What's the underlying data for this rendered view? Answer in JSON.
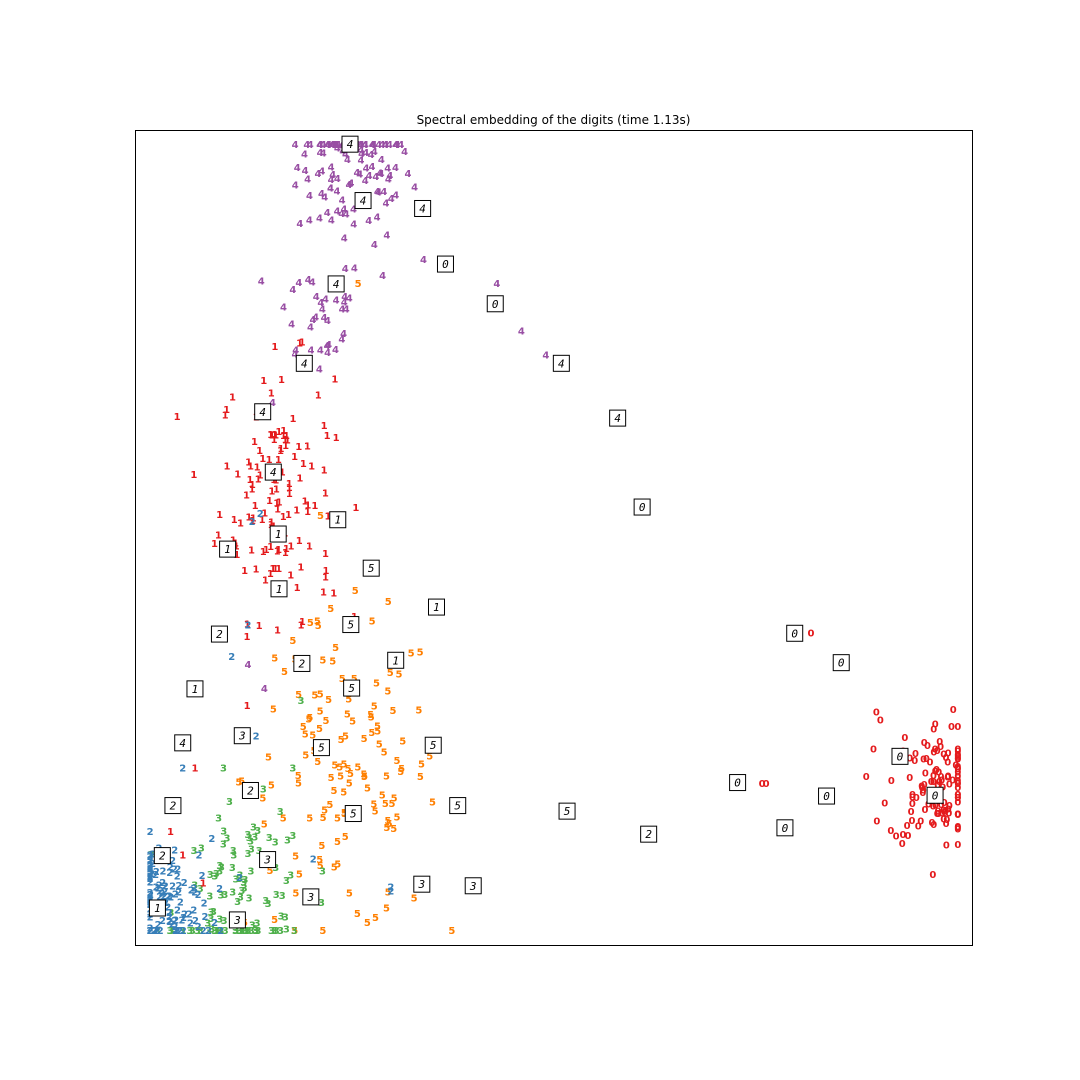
{
  "chart_data": {
    "type": "scatter",
    "title": "Spectral embedding of the digits (time 1.13s)",
    "xlabel": "",
    "ylabel": "",
    "xlim": [
      0,
      1
    ],
    "ylim": [
      0,
      1
    ],
    "grid": false,
    "axes_ticks": false,
    "colors": {
      "0": "#e41a1c",
      "1": "#e41a1c",
      "2": "#377eb8",
      "3": "#4daf4a",
      "4": "#984ea3",
      "5": "#ff7f00"
    },
    "clusters": [
      {
        "digit": "4",
        "center": [
          0.255,
          0.97
        ],
        "spread": [
          0.035,
          0.05
        ],
        "count": 120
      },
      {
        "digit": "4",
        "center": [
          0.21,
          0.78
        ],
        "spread": [
          0.03,
          0.04
        ],
        "count": 35
      },
      {
        "digit": "1",
        "center": [
          0.16,
          0.56
        ],
        "spread": [
          0.035,
          0.08
        ],
        "count": 130
      },
      {
        "digit": "5",
        "center": [
          0.24,
          0.2
        ],
        "spread": [
          0.06,
          0.1
        ],
        "count": 130
      },
      {
        "digit": "3",
        "center": [
          0.12,
          0.04
        ],
        "spread": [
          0.04,
          0.06
        ],
        "count": 110
      },
      {
        "digit": "2",
        "center": [
          0.02,
          0.04
        ],
        "spread": [
          0.03,
          0.04
        ],
        "count": 120
      },
      {
        "digit": "0",
        "center": [
          0.97,
          0.19
        ],
        "spread": [
          0.03,
          0.04
        ],
        "count": 120
      }
    ],
    "points": [
      {
        "d": "4",
        "x": 0.29,
        "y": 0.83
      },
      {
        "d": "4",
        "x": 0.34,
        "y": 0.85
      },
      {
        "d": "4",
        "x": 0.43,
        "y": 0.82
      },
      {
        "d": "4",
        "x": 0.46,
        "y": 0.76
      },
      {
        "d": "4",
        "x": 0.49,
        "y": 0.73
      },
      {
        "d": "4",
        "x": 0.155,
        "y": 0.67
      },
      {
        "d": "4",
        "x": 0.125,
        "y": 0.34
      },
      {
        "d": "4",
        "x": 0.145,
        "y": 0.31
      },
      {
        "d": "5",
        "x": 0.26,
        "y": 0.82
      },
      {
        "d": "5",
        "x": 0.21,
        "y": 0.395
      },
      {
        "d": "5",
        "x": 0.18,
        "y": 0.37
      },
      {
        "d": "1",
        "x": 0.22,
        "y": 0.48
      },
      {
        "d": "1",
        "x": 0.22,
        "y": 0.45
      },
      {
        "d": "1",
        "x": 0.23,
        "y": 0.43
      },
      {
        "d": "1",
        "x": 0.19,
        "y": 0.39
      },
      {
        "d": "1",
        "x": 0.06,
        "y": 0.21
      },
      {
        "d": "1",
        "x": 0.03,
        "y": 0.13
      },
      {
        "d": "1",
        "x": 0.045,
        "y": 0.1
      },
      {
        "d": "1",
        "x": 0.07,
        "y": 0.065
      },
      {
        "d": "2",
        "x": 0.14,
        "y": 0.53
      },
      {
        "d": "2",
        "x": 0.13,
        "y": 0.52
      },
      {
        "d": "2",
        "x": 0.125,
        "y": 0.39
      },
      {
        "d": "2",
        "x": 0.105,
        "y": 0.35
      },
      {
        "d": "2",
        "x": 0.135,
        "y": 0.25
      },
      {
        "d": "2",
        "x": 0.045,
        "y": 0.21
      },
      {
        "d": "2",
        "x": 0.065,
        "y": 0.1
      },
      {
        "d": "2",
        "x": 0.205,
        "y": 0.095
      },
      {
        "d": "2",
        "x": 0.3,
        "y": 0.06
      },
      {
        "d": "2",
        "x": 0.3,
        "y": 0.055
      },
      {
        "d": "3",
        "x": 0.19,
        "y": 0.295
      },
      {
        "d": "3",
        "x": 0.18,
        "y": 0.21
      },
      {
        "d": "3",
        "x": 0.095,
        "y": 0.21
      },
      {
        "d": "3",
        "x": 0.215,
        "y": 0.04
      },
      {
        "d": "0",
        "x": 0.815,
        "y": 0.38
      },
      {
        "d": "0",
        "x": 0.755,
        "y": 0.19
      },
      {
        "d": "0",
        "x": 0.76,
        "y": 0.19
      },
      {
        "d": "0",
        "x": 0.895,
        "y": 0.28
      },
      {
        "d": "0",
        "x": 0.9,
        "y": 0.27
      }
    ],
    "thumbnails": [
      {
        "d": "4",
        "x": 0.25,
        "y": 0.996
      },
      {
        "d": "4",
        "x": 0.266,
        "y": 0.925
      },
      {
        "d": "4",
        "x": 0.339,
        "y": 0.915
      },
      {
        "d": "0",
        "x": 0.367,
        "y": 0.845
      },
      {
        "d": "0",
        "x": 0.428,
        "y": 0.795
      },
      {
        "d": "4",
        "x": 0.233,
        "y": 0.82
      },
      {
        "d": "4",
        "x": 0.194,
        "y": 0.72
      },
      {
        "d": "4",
        "x": 0.509,
        "y": 0.72
      },
      {
        "d": "4",
        "x": 0.143,
        "y": 0.659
      },
      {
        "d": "4",
        "x": 0.578,
        "y": 0.651
      },
      {
        "d": "4",
        "x": 0.156,
        "y": 0.583
      },
      {
        "d": "1",
        "x": 0.235,
        "y": 0.523
      },
      {
        "d": "1",
        "x": 0.162,
        "y": 0.505
      },
      {
        "d": "1",
        "x": 0.1,
        "y": 0.486
      },
      {
        "d": "0",
        "x": 0.608,
        "y": 0.539
      },
      {
        "d": "5",
        "x": 0.276,
        "y": 0.462
      },
      {
        "d": "1",
        "x": 0.163,
        "y": 0.436
      },
      {
        "d": "1",
        "x": 0.356,
        "y": 0.413
      },
      {
        "d": "5",
        "x": 0.251,
        "y": 0.391
      },
      {
        "d": "2",
        "x": 0.09,
        "y": 0.379
      },
      {
        "d": "2",
        "x": 0.191,
        "y": 0.342
      },
      {
        "d": "1",
        "x": 0.306,
        "y": 0.346
      },
      {
        "d": "1",
        "x": 0.06,
        "y": 0.31
      },
      {
        "d": "5",
        "x": 0.252,
        "y": 0.311
      },
      {
        "d": "0",
        "x": 0.795,
        "y": 0.38
      },
      {
        "d": "0",
        "x": 0.852,
        "y": 0.343
      },
      {
        "d": "4",
        "x": 0.045,
        "y": 0.242
      },
      {
        "d": "3",
        "x": 0.118,
        "y": 0.251
      },
      {
        "d": "5",
        "x": 0.215,
        "y": 0.236
      },
      {
        "d": "5",
        "x": 0.352,
        "y": 0.239
      },
      {
        "d": "0",
        "x": 0.924,
        "y": 0.225
      },
      {
        "d": "2",
        "x": 0.128,
        "y": 0.182
      },
      {
        "d": "2",
        "x": 0.033,
        "y": 0.163
      },
      {
        "d": "5",
        "x": 0.254,
        "y": 0.153
      },
      {
        "d": "5",
        "x": 0.382,
        "y": 0.163
      },
      {
        "d": "5",
        "x": 0.516,
        "y": 0.156
      },
      {
        "d": "0",
        "x": 0.725,
        "y": 0.192
      },
      {
        "d": "0",
        "x": 0.834,
        "y": 0.175
      },
      {
        "d": "0",
        "x": 0.967,
        "y": 0.176
      },
      {
        "d": "0",
        "x": 0.783,
        "y": 0.135
      },
      {
        "d": "2",
        "x": 0.616,
        "y": 0.127
      },
      {
        "d": "2",
        "x": 0.02,
        "y": 0.1
      },
      {
        "d": "3",
        "x": 0.149,
        "y": 0.095
      },
      {
        "d": "3",
        "x": 0.202,
        "y": 0.048
      },
      {
        "d": "3",
        "x": 0.338,
        "y": 0.064
      },
      {
        "d": "3",
        "x": 0.401,
        "y": 0.062
      },
      {
        "d": "1",
        "x": 0.014,
        "y": 0.034
      },
      {
        "d": "3",
        "x": 0.112,
        "y": 0.019
      }
    ]
  }
}
